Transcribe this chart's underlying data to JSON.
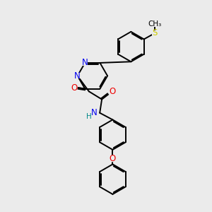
{
  "bg_color": "#ebebeb",
  "bond_color": "#000000",
  "bond_width": 1.4,
  "dbo": 0.055,
  "atom_colors": {
    "N": "#0000ee",
    "O": "#ee0000",
    "S": "#cccc00",
    "H": "#008888"
  }
}
